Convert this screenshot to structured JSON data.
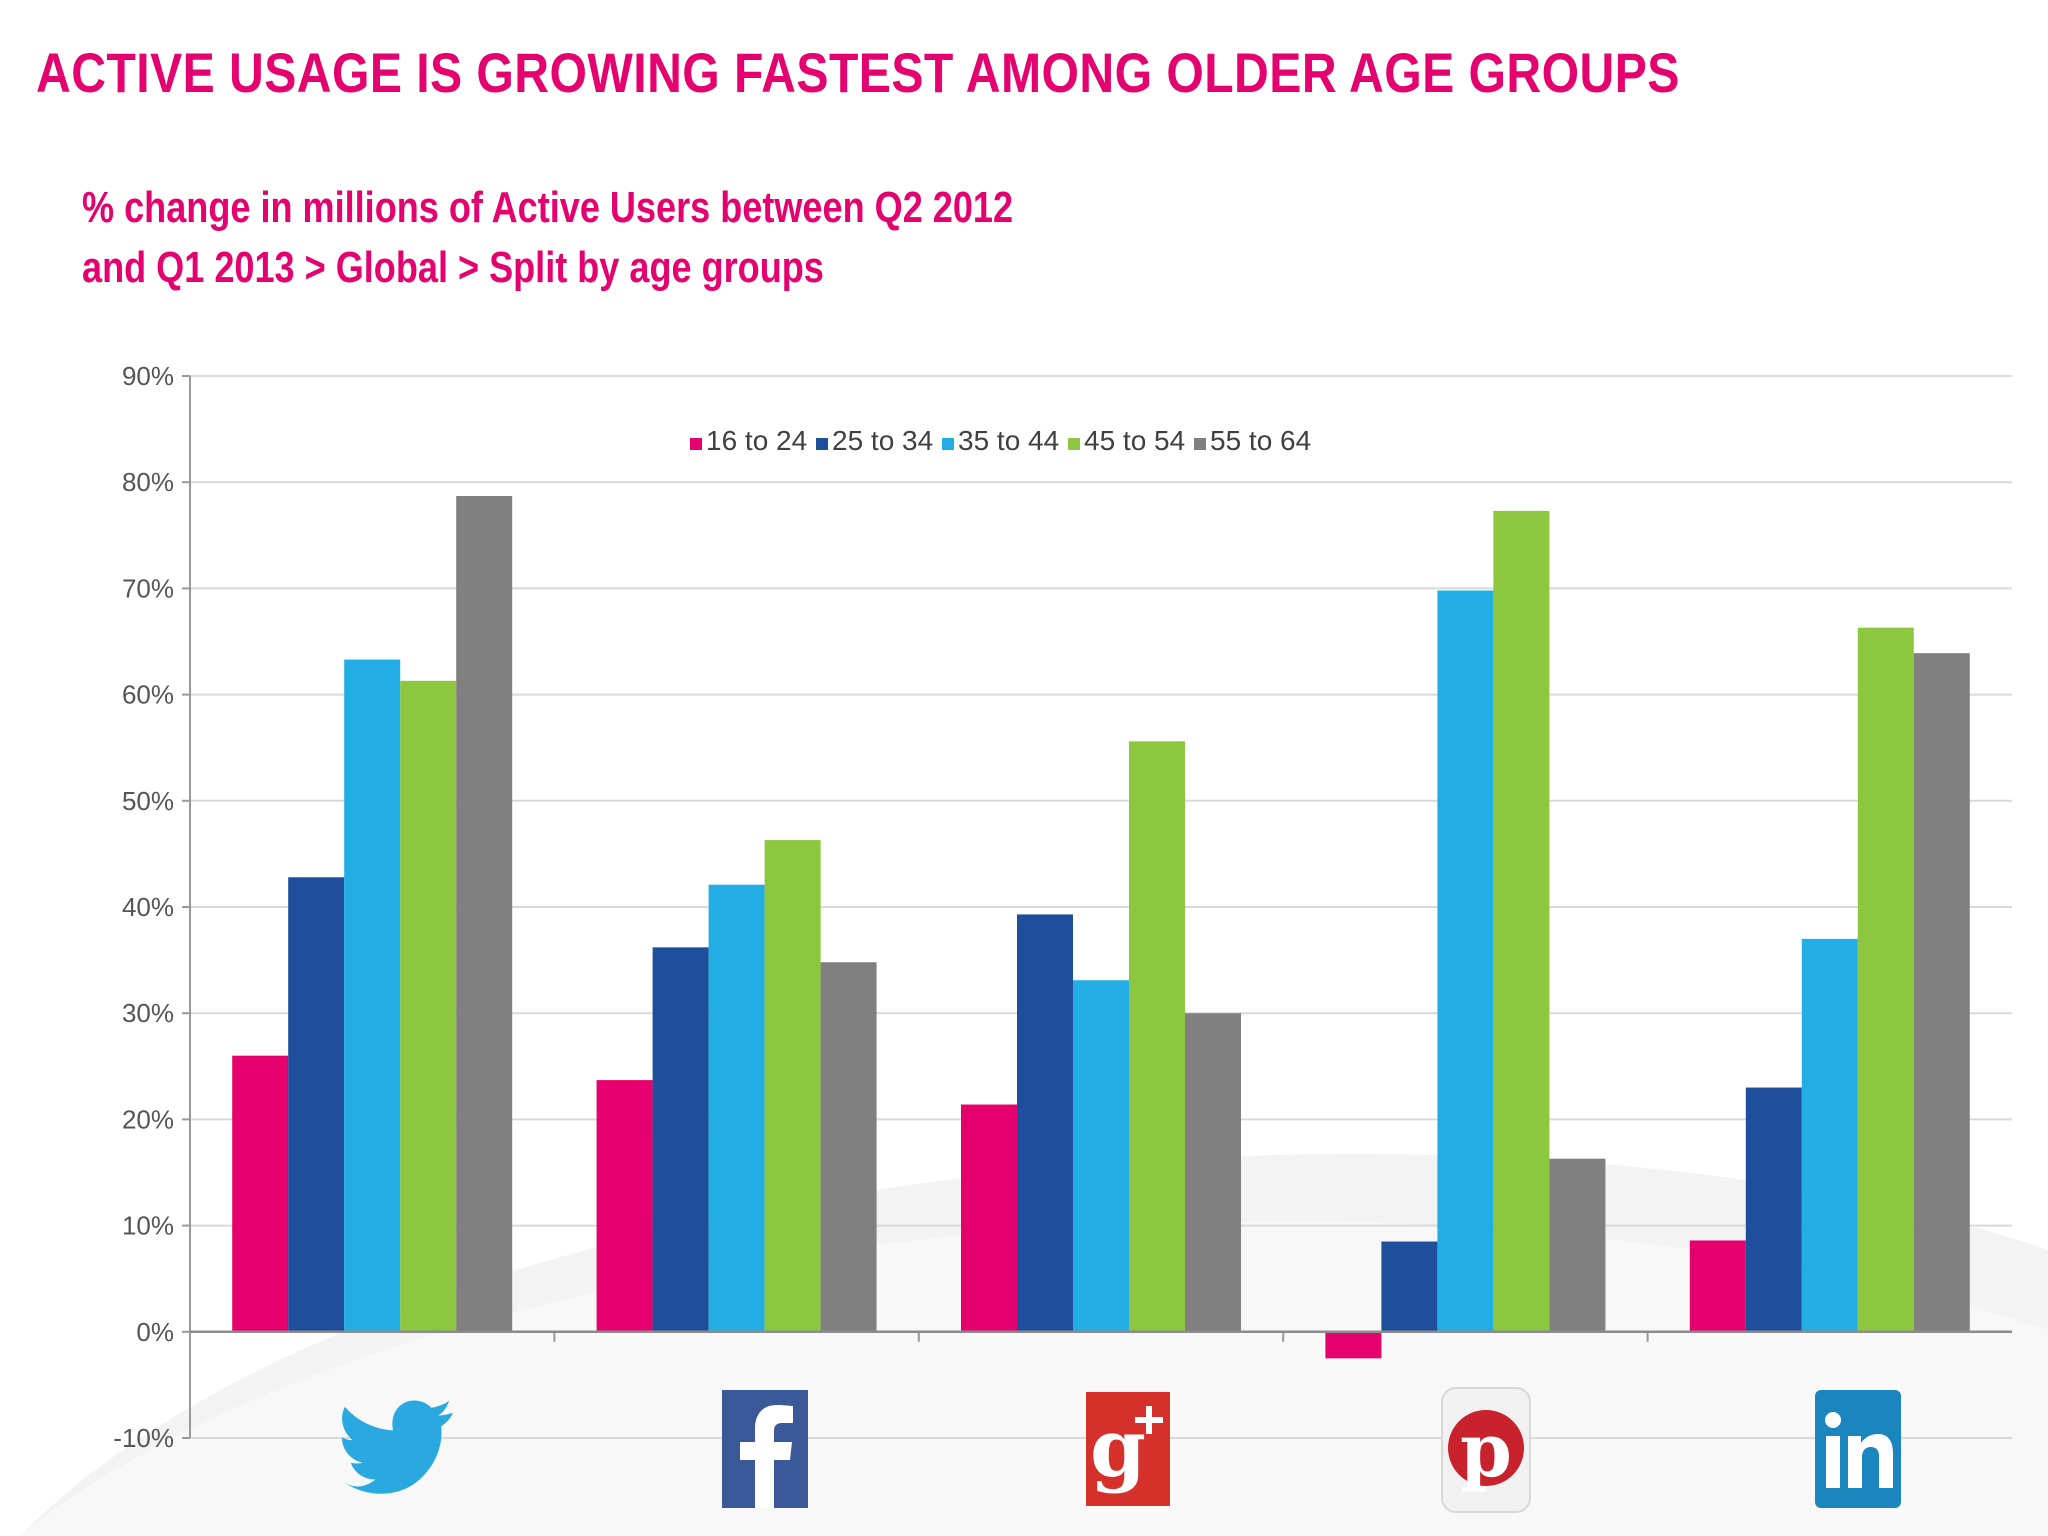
{
  "title": "ACTIVE USAGE IS GROWING FASTEST AMONG OLDER AGE GROUPS",
  "subtitle": {
    "line1": "% change in millions of Active Users between Q2 2012",
    "line2": "and Q1 2013 > Global > Split by age groups"
  },
  "colors": {
    "title": "#e5006f",
    "grid": "#d9d9d9",
    "axis": "#999999"
  },
  "chart_data": {
    "type": "bar",
    "categories": [
      "Twitter",
      "Facebook",
      "Google+",
      "Pinterest",
      "LinkedIn"
    ],
    "category_icons": [
      "twitter-icon",
      "facebook-icon",
      "google-plus-icon",
      "pinterest-icon",
      "linkedin-icon"
    ],
    "series": [
      {
        "name": "16 to 24",
        "color": "#e6006e",
        "values": [
          26,
          23.7,
          21.4,
          -2.5,
          8.6
        ]
      },
      {
        "name": "25 to 34",
        "color": "#1f4e9c",
        "values": [
          42.8,
          36.2,
          39.3,
          8.5,
          23
        ]
      },
      {
        "name": "35 to 44",
        "color": "#22ade4",
        "values": [
          63.3,
          42.1,
          33.1,
          69.8,
          37
        ]
      },
      {
        "name": "45 to 54",
        "color": "#8dc63f",
        "values": [
          61.3,
          46.3,
          55.6,
          77.3,
          66.3
        ]
      },
      {
        "name": "55 to 64",
        "color": "#808080",
        "values": [
          78.7,
          34.8,
          30,
          16.3,
          63.9
        ]
      }
    ],
    "ylim": [
      -10,
      90
    ],
    "yticks": [
      "-10%",
      "0%",
      "10%",
      "20%",
      "30%",
      "40%",
      "50%",
      "60%",
      "70%",
      "80%",
      "90%"
    ],
    "grid": true,
    "legend_position": "top-center"
  }
}
